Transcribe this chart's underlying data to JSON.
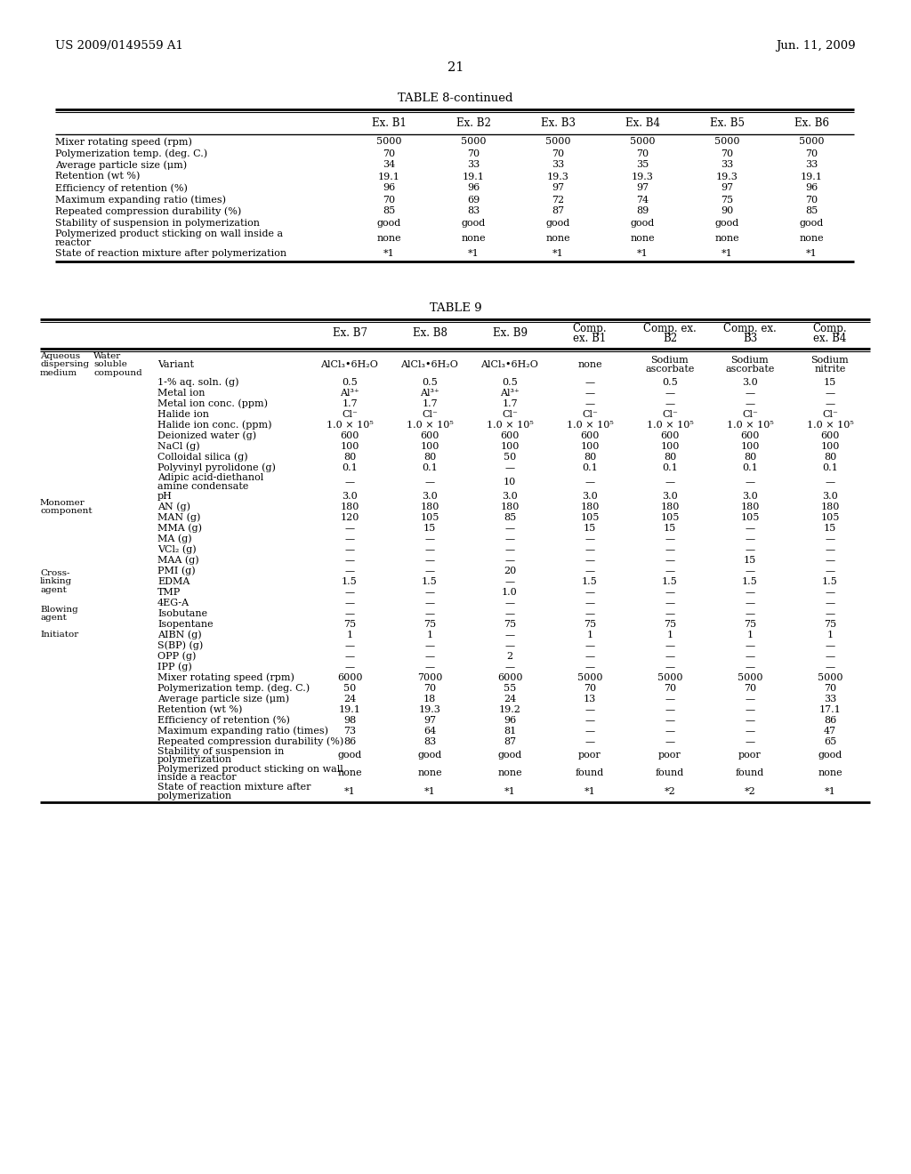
{
  "header_text_left": "US 2009/0149559 A1",
  "header_text_right": "Jun. 11, 2009",
  "page_number": "21",
  "table8_title": "TABLE 8-continued",
  "table8_columns": [
    "Ex. B1",
    "Ex. B2",
    "Ex. B3",
    "Ex. B4",
    "Ex. B5",
    "Ex. B6"
  ],
  "table8_rows": [
    [
      "Mixer rotating speed (rpm)",
      "5000",
      "5000",
      "5000",
      "5000",
      "5000",
      "5000"
    ],
    [
      "Polymerization temp. (deg. C.)",
      "70",
      "70",
      "70",
      "70",
      "70",
      "70"
    ],
    [
      "Average particle size (μm)",
      "34",
      "33",
      "33",
      "35",
      "33",
      "33"
    ],
    [
      "Retention (wt %)",
      "19.1",
      "19.1",
      "19.3",
      "19.3",
      "19.3",
      "19.1"
    ],
    [
      "Efficiency of retention (%)",
      "96",
      "96",
      "97",
      "97",
      "97",
      "96"
    ],
    [
      "Maximum expanding ratio (times)",
      "70",
      "69",
      "72",
      "74",
      "75",
      "70"
    ],
    [
      "Repeated compression durability (%)",
      "85",
      "83",
      "87",
      "89",
      "90",
      "85"
    ],
    [
      "Stability of suspension in polymerization",
      "good",
      "good",
      "good",
      "good",
      "good",
      "good"
    ],
    [
      "Polymerized product sticking on wall inside a|reactor",
      "none",
      "none",
      "none",
      "none",
      "none",
      "none"
    ],
    [
      "State of reaction mixture after polymerization",
      "*1",
      "*1",
      "*1",
      "*1",
      "*1",
      "*1"
    ]
  ],
  "table9_title": "TABLE 9",
  "table9_col_headers": [
    "Ex. B7",
    "Ex. B8",
    "Ex. B9",
    "Comp.|ex. B1",
    "Comp. ex.|B2",
    "Comp. ex.|B3",
    "Comp.|ex. B4"
  ],
  "table9_rows": [
    [
      "Aqueous|dispersing|medium",
      "Water|soluble|compound",
      "Variant",
      "AlCl₃•6H₂O",
      "AlCl₃•6H₂O",
      "AlCl₃•6H₂O",
      "none",
      "Sodium|ascorbate",
      "Sodium|ascorbate",
      "Sodium|nitrite"
    ],
    [
      "",
      "",
      "1-% aq. soln. (g)",
      "0.5",
      "0.5",
      "0.5",
      "—",
      "0.5",
      "3.0",
      "15"
    ],
    [
      "",
      "",
      "Metal ion",
      "Al³⁺",
      "Al³⁺",
      "Al³⁺",
      "—",
      "—",
      "—",
      "—"
    ],
    [
      "",
      "",
      "Metal ion conc. (ppm)",
      "1.7",
      "1.7",
      "1.7",
      "—",
      "—",
      "—",
      "—"
    ],
    [
      "",
      "",
      "Halide ion",
      "Cl⁻",
      "Cl⁻",
      "Cl⁻",
      "Cl⁻",
      "Cl⁻",
      "Cl⁻",
      "Cl⁻"
    ],
    [
      "",
      "",
      "Halide ion conc. (ppm)",
      "1.0 × 10⁵",
      "1.0 × 10⁵",
      "1.0 × 10⁵",
      "1.0 × 10⁵",
      "1.0 × 10⁵",
      "1.0 × 10⁵",
      "1.0 × 10⁵"
    ],
    [
      "",
      "",
      "Deionized water (g)",
      "600",
      "600",
      "600",
      "600",
      "600",
      "600",
      "600"
    ],
    [
      "",
      "",
      "NaCl (g)",
      "100",
      "100",
      "100",
      "100",
      "100",
      "100",
      "100"
    ],
    [
      "",
      "",
      "Colloidal silica (g)",
      "80",
      "80",
      "50",
      "80",
      "80",
      "80",
      "80"
    ],
    [
      "",
      "",
      "Polyvinyl pyrolidone (g)",
      "0.1",
      "0.1",
      "—",
      "0.1",
      "0.1",
      "0.1",
      "0.1"
    ],
    [
      "",
      "",
      "Adipic acid-diethanol|amine condensate",
      "—",
      "—",
      "10",
      "—",
      "—",
      "—",
      "—"
    ],
    [
      "",
      "",
      "pH",
      "3.0",
      "3.0",
      "3.0",
      "3.0",
      "3.0",
      "3.0",
      "3.0"
    ],
    [
      "Monomer|component",
      "",
      "AN (g)",
      "180",
      "180",
      "180",
      "180",
      "180",
      "180",
      "180"
    ],
    [
      "",
      "",
      "MAN (g)",
      "120",
      "105",
      "85",
      "105",
      "105",
      "105",
      "105"
    ],
    [
      "",
      "",
      "MMA (g)",
      "—",
      "15",
      "—",
      "15",
      "15",
      "—",
      "15"
    ],
    [
      "",
      "",
      "MA (g)",
      "—",
      "—",
      "—",
      "—",
      "—",
      "—",
      "—"
    ],
    [
      "",
      "",
      "VCl₂ (g)",
      "—",
      "—",
      "—",
      "—",
      "—",
      "—",
      "—"
    ],
    [
      "",
      "",
      "MAA (g)",
      "—",
      "—",
      "—",
      "—",
      "—",
      "15",
      "—"
    ],
    [
      "",
      "",
      "PMI (g)",
      "—",
      "—",
      "20",
      "—",
      "—",
      "—",
      "—"
    ],
    [
      "Cross-|linking|agent",
      "",
      "EDMA",
      "1.5",
      "1.5",
      "—",
      "1.5",
      "1.5",
      "1.5",
      "1.5"
    ],
    [
      "",
      "",
      "TMP",
      "—",
      "—",
      "1.0",
      "—",
      "—",
      "—",
      "—"
    ],
    [
      "",
      "",
      "4EG-A",
      "—",
      "—",
      "—",
      "—",
      "—",
      "—",
      "—"
    ],
    [
      "Blowing|agent",
      "",
      "Isobutane",
      "—",
      "—",
      "—",
      "—",
      "—",
      "—",
      "—"
    ],
    [
      "",
      "",
      "Isopentane",
      "75",
      "75",
      "75",
      "75",
      "75",
      "75",
      "75"
    ],
    [
      "Initiator",
      "",
      "AIBN (g)",
      "1",
      "1",
      "—",
      "1",
      "1",
      "1",
      "1"
    ],
    [
      "",
      "",
      "S(BP) (g)",
      "—",
      "—",
      "—",
      "—",
      "—",
      "—",
      "—"
    ],
    [
      "",
      "",
      "OPP (g)",
      "—",
      "—",
      "2",
      "—",
      "—",
      "—",
      "—"
    ],
    [
      "",
      "",
      "IPP (g)",
      "—",
      "—",
      "—",
      "—",
      "—",
      "—",
      "—"
    ],
    [
      "",
      "",
      "Mixer rotating speed (rpm)",
      "6000",
      "7000",
      "6000",
      "5000",
      "5000",
      "5000",
      "5000"
    ],
    [
      "",
      "",
      "Polymerization temp. (deg. C.)",
      "50",
      "70",
      "55",
      "70",
      "70",
      "70",
      "70"
    ],
    [
      "",
      "",
      "Average particle size (μm)",
      "24",
      "18",
      "24",
      "13",
      "—",
      "—",
      "33"
    ],
    [
      "",
      "",
      "Retention (wt %)",
      "19.1",
      "19.3",
      "19.2",
      "—",
      "—",
      "—",
      "17.1"
    ],
    [
      "",
      "",
      "Efficiency of retention (%)",
      "98",
      "97",
      "96",
      "—",
      "—",
      "—",
      "86"
    ],
    [
      "",
      "",
      "Maximum expanding ratio (times)",
      "73",
      "64",
      "81",
      "—",
      "—",
      "—",
      "47"
    ],
    [
      "",
      "",
      "Repeated compression durability (%)",
      "86",
      "83",
      "87",
      "—",
      "—",
      "—",
      "65"
    ],
    [
      "",
      "",
      "Stability of suspension in|polymerization",
      "good",
      "good",
      "good",
      "poor",
      "poor",
      "poor",
      "good"
    ],
    [
      "",
      "",
      "Polymerized product sticking on wall|inside a reactor",
      "none",
      "none",
      "none",
      "found",
      "found",
      "found",
      "none"
    ],
    [
      "",
      "",
      "State of reaction mixture after|polymerization",
      "*1",
      "*1",
      "*1",
      "*1",
      "*2",
      "*2",
      "*1"
    ]
  ]
}
